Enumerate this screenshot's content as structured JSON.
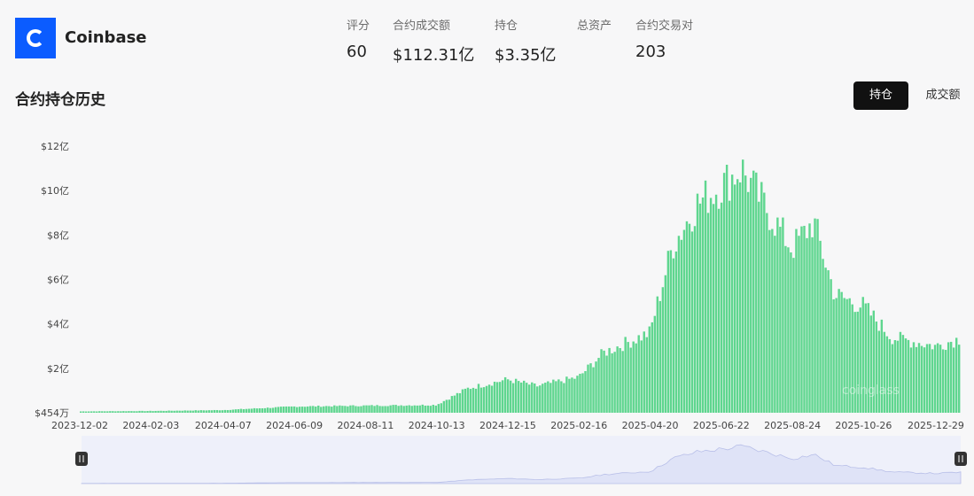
{
  "header": {
    "brand_name": "Coinbase",
    "logo_icon": "coinbase-logo-icon",
    "brand_color": "#0b5cff",
    "stats": [
      {
        "label": "评分",
        "value": "60"
      },
      {
        "label": "合约成交额",
        "value": "$112.31亿"
      },
      {
        "label": "持仓",
        "value": "$3.35亿"
      },
      {
        "label": "总资产",
        "value": ""
      },
      {
        "label": "合约交易对",
        "value": "203"
      }
    ]
  },
  "section": {
    "title": "合约持仓历史",
    "toggle": {
      "active": "持仓",
      "inactive": "成交额"
    }
  },
  "chart_data": {
    "type": "bar",
    "title": "",
    "xlabel": "",
    "ylabel": "",
    "color": "#5fd68f",
    "grid": false,
    "y_ticks": [
      "$454万",
      "$2亿",
      "$4亿",
      "$6亿",
      "$8亿",
      "$10亿",
      "$12亿"
    ],
    "x_ticks": [
      "2023-12-02",
      "2024-02-03",
      "2024-04-07",
      "2024-06-09",
      "2024-08-11",
      "2024-10-13",
      "2024-12-15",
      "2025-02-16",
      "2025-04-20",
      "2025-06-22",
      "2025-08-24",
      "2025-10-26",
      "2025-12-29"
    ],
    "ylim_yi": [
      0.0454,
      12
    ],
    "series_keyframes": [
      {
        "date": "2023-12-02",
        "value": 0.06
      },
      {
        "date": "2024-02-03",
        "value": 0.08
      },
      {
        "date": "2024-04-07",
        "value": 0.12
      },
      {
        "date": "2024-06-09",
        "value": 0.28
      },
      {
        "date": "2024-08-11",
        "value": 0.32
      },
      {
        "date": "2024-10-13",
        "value": 0.35
      },
      {
        "date": "2024-11-10",
        "value": 1.1
      },
      {
        "date": "2024-12-15",
        "value": 1.5
      },
      {
        "date": "2025-01-10",
        "value": 1.2
      },
      {
        "date": "2025-02-16",
        "value": 1.6
      },
      {
        "date": "2025-03-10",
        "value": 2.7
      },
      {
        "date": "2025-04-20",
        "value": 3.6
      },
      {
        "date": "2025-05-10",
        "value": 7.5
      },
      {
        "date": "2025-06-01",
        "value": 9.4
      },
      {
        "date": "2025-06-22",
        "value": 10.2
      },
      {
        "date": "2025-07-10",
        "value": 11.0
      },
      {
        "date": "2025-08-01",
        "value": 9.2
      },
      {
        "date": "2025-08-24",
        "value": 7.4
      },
      {
        "date": "2025-09-12",
        "value": 8.6
      },
      {
        "date": "2025-10-01",
        "value": 5.3
      },
      {
        "date": "2025-10-26",
        "value": 4.8
      },
      {
        "date": "2025-11-20",
        "value": 3.4
      },
      {
        "date": "2025-12-29",
        "value": 3.0
      },
      {
        "date": "2026-01-20",
        "value": 3.35
      }
    ],
    "watermark": "coinglass"
  },
  "navigator": {
    "left_handle_icon": "drag-handle-icon",
    "right_handle_icon": "drag-handle-icon",
    "fill_color": "#dfe3f7"
  }
}
